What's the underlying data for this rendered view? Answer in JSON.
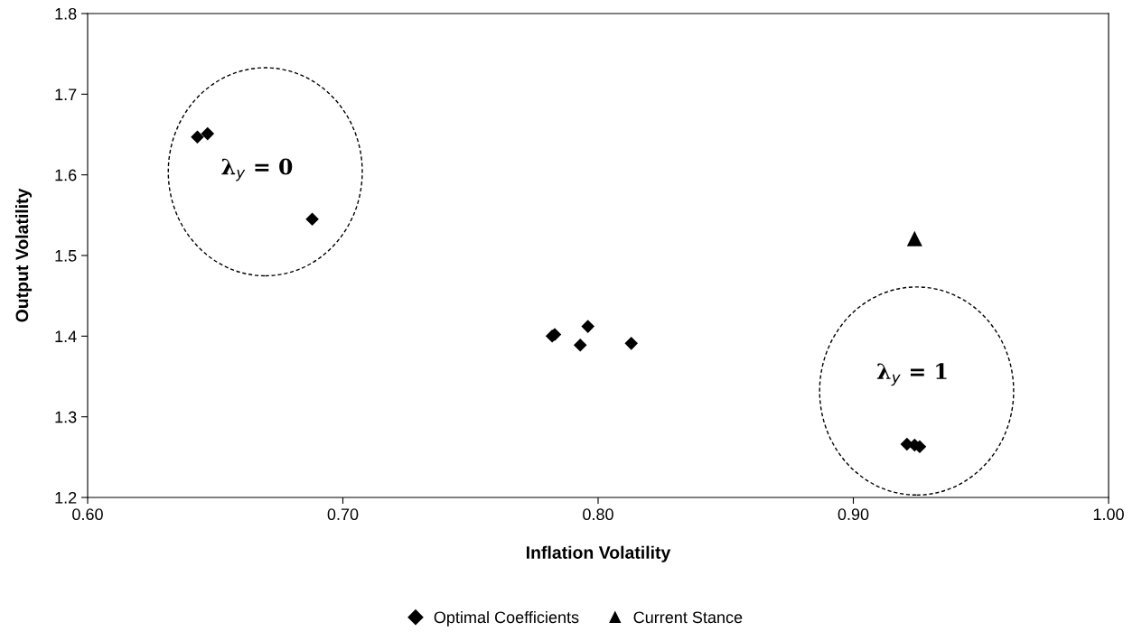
{
  "chart_data": {
    "type": "scatter",
    "xlabel": "Inflation Volatility",
    "ylabel": "Output Volatility",
    "series": [
      {
        "name": "Optimal Coefficients",
        "color": "#000000",
        "marker": "diamond",
        "x": [
          0.643,
          0.647,
          0.688,
          0.782,
          0.783,
          0.796,
          0.793,
          0.813,
          0.921,
          0.924,
          0.926
        ],
        "values": [
          1.647,
          1.651,
          1.545,
          1.4,
          1.402,
          1.412,
          1.389,
          1.391,
          1.266,
          1.265,
          1.263
        ]
      },
      {
        "name": "Current Stance",
        "color": "#000000",
        "marker": "triangle",
        "x": [
          0.924
        ],
        "values": [
          1.521
        ]
      }
    ],
    "xlim": [
      0.6,
      1.0
    ],
    "xticks": [
      {
        "value": 0.6,
        "label": "0.60"
      },
      {
        "value": 0.7,
        "label": "0.70"
      },
      {
        "value": 0.8,
        "label": "0.80"
      },
      {
        "value": 0.9,
        "label": "0.90"
      },
      {
        "value": 1.0,
        "label": "1.00"
      }
    ],
    "ylim": [
      1.2,
      1.8
    ],
    "yticks": [
      {
        "value": 1.2,
        "label": "1.2"
      },
      {
        "value": 1.3,
        "label": "1.3"
      },
      {
        "value": 1.4,
        "label": "1.4"
      },
      {
        "value": 1.5,
        "label": "1.5"
      },
      {
        "value": 1.6,
        "label": "1.6"
      },
      {
        "value": 1.7,
        "label": "1.7"
      },
      {
        "value": 1.8,
        "label": "1.8"
      }
    ],
    "annotations": [
      "λ$_{y}$ = 0",
      "λ$_{y}$ = 1"
    ],
    "grid": false,
    "legend": "bottom"
  }
}
